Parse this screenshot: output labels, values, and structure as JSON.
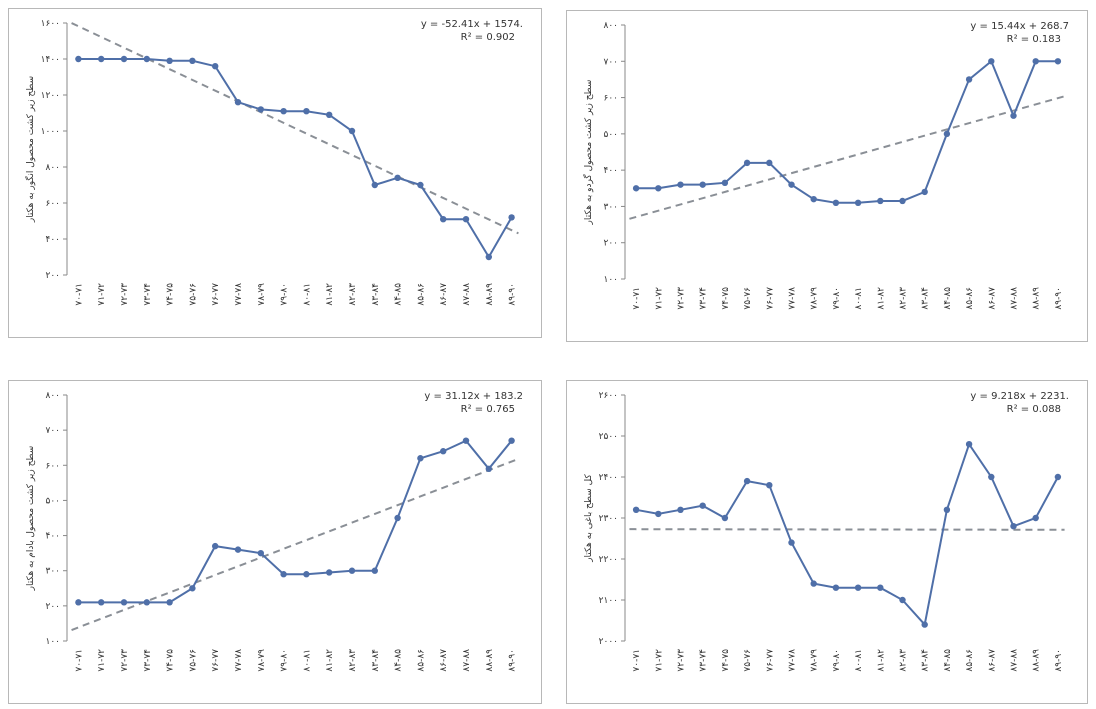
{
  "chart_data": [
    {
      "type": "line",
      "ylabel": "سطح زیر کشت محصول انگور به هکتار",
      "equation": "y = -52.41x + 1574.",
      "r2": "R² = 0.902",
      "categories": [
        "۷۰-۷۱",
        "۷۱-۷۲",
        "۷۲-۷۳",
        "۷۳-۷۴",
        "۷۴-۷۵",
        "۷۵-۷۶",
        "۷۶-۷۷",
        "۷۷-۷۸",
        "۷۸-۷۹",
        "۷۹-۸۰",
        "۸۰-۸۱",
        "۸۱-۸۲",
        "۸۲-۸۳",
        "۸۳-۸۴",
        "۸۴-۸۵",
        "۸۵-۸۶",
        "۸۶-۸۷",
        "۸۷-۸۸",
        "۸۸-۸۹",
        "۸۹-۹۰"
      ],
      "values": [
        1400,
        1400,
        1400,
        1400,
        1390,
        1390,
        1360,
        1160,
        1120,
        1110,
        1110,
        1090,
        1000,
        700,
        740,
        700,
        510,
        510,
        300,
        520
      ],
      "color": "#4f6fa8",
      "trend_color": "#8a8f96",
      "ylim": [
        200,
        1600
      ],
      "yticks": [
        {
          "value": 200,
          "label": "۲۰۰"
        },
        {
          "value": 400,
          "label": "۴۰۰"
        },
        {
          "value": 600,
          "label": "۶۰۰"
        },
        {
          "value": 800,
          "label": "۸۰۰"
        },
        {
          "value": 1000,
          "label": "۱۰۰۰"
        },
        {
          "value": 1200,
          "label": "۱۲۰۰"
        },
        {
          "value": 1400,
          "label": "۱۴۰۰"
        },
        {
          "value": 1600,
          "label": "۱۶۰۰"
        }
      ]
    },
    {
      "type": "line",
      "ylabel": "سطح زیر کشت محصول گردو به هکتار",
      "equation": "y = 15.44x + 268.7",
      "r2": "R² = 0.183",
      "categories": [
        "۷۰-۷۱",
        "۷۱-۷۲",
        "۷۲-۷۳",
        "۷۳-۷۴",
        "۷۴-۷۵",
        "۷۵-۷۶",
        "۷۶-۷۷",
        "۷۷-۷۸",
        "۷۸-۷۹",
        "۷۹-۸۰",
        "۸۰-۸۱",
        "۸۱-۸۲",
        "۸۲-۸۳",
        "۸۳-۸۴",
        "۸۴-۸۵",
        "۸۵-۸۶",
        "۸۶-۸۷",
        "۸۷-۸۸",
        "۸۸-۸۹",
        "۸۹-۹۰"
      ],
      "values": [
        350,
        350,
        360,
        360,
        365,
        420,
        420,
        360,
        320,
        310,
        310,
        315,
        315,
        340,
        500,
        650,
        700,
        550,
        700,
        700
      ],
      "color": "#4f6fa8",
      "trend_color": "#8a8f96",
      "ylim": [
        100,
        800
      ],
      "yticks": [
        {
          "value": 100,
          "label": "۱۰۰"
        },
        {
          "value": 200,
          "label": "۲۰۰"
        },
        {
          "value": 300,
          "label": "۳۰۰"
        },
        {
          "value": 400,
          "label": "۴۰۰"
        },
        {
          "value": 500,
          "label": "۵۰۰"
        },
        {
          "value": 600,
          "label": "۶۰۰"
        },
        {
          "value": 700,
          "label": "۷۰۰"
        },
        {
          "value": 800,
          "label": "۸۰۰"
        }
      ]
    },
    {
      "type": "line",
      "ylabel": "سطح زیر کشت محصول بادام به هکتار",
      "equation": "y = 31.12x + 183.2",
      "r2": "R² = 0.765",
      "categories": [
        "۷۰-۷۱",
        "۷۱-۷۲",
        "۷۲-۷۳",
        "۷۳-۷۴",
        "۷۴-۷۵",
        "۷۵-۷۶",
        "۷۶-۷۷",
        "۷۷-۷۸",
        "۷۸-۷۹",
        "۷۹-۸۰",
        "۸۰-۸۱",
        "۸۱-۸۲",
        "۸۲-۸۳",
        "۸۳-۸۴",
        "۸۴-۸۵",
        "۸۵-۸۶",
        "۸۶-۸۷",
        "۸۷-۸۸",
        "۸۸-۸۹",
        "۸۹-۹۰"
      ],
      "values": [
        210,
        210,
        210,
        210,
        210,
        250,
        370,
        360,
        350,
        290,
        290,
        295,
        300,
        300,
        450,
        620,
        640,
        670,
        590,
        670
      ],
      "color": "#4f6fa8",
      "trend_color": "#8a8f96",
      "ylim": [
        100,
        800
      ],
      "yticks": [
        {
          "value": 100,
          "label": "۱۰۰"
        },
        {
          "value": 200,
          "label": "۲۰۰"
        },
        {
          "value": 300,
          "label": "۳۰۰"
        },
        {
          "value": 400,
          "label": "۴۰۰"
        },
        {
          "value": 500,
          "label": "۵۰۰"
        },
        {
          "value": 600,
          "label": "۶۰۰"
        },
        {
          "value": 700,
          "label": "۷۰۰"
        },
        {
          "value": 800,
          "label": "۸۰۰"
        }
      ]
    },
    {
      "type": "line",
      "ylabel": "کل سطح باغی به هکتار",
      "equation": "y = 9.218x + 2231.",
      "r2": "R² = 0.088",
      "categories": [
        "۷۰-۷۱",
        "۷۱-۷۲",
        "۷۲-۷۳",
        "۷۳-۷۴",
        "۷۴-۷۵",
        "۷۵-۷۶",
        "۷۶-۷۷",
        "۷۷-۷۸",
        "۷۸-۷۹",
        "۷۹-۸۰",
        "۸۰-۸۱",
        "۸۱-۸۲",
        "۸۲-۸۳",
        "۸۳-۸۴",
        "۸۴-۸۵",
        "۸۵-۸۶",
        "۸۶-۸۷",
        "۸۷-۸۸",
        "۸۸-۸۹",
        "۸۹-۹۰"
      ],
      "values": [
        2320,
        2310,
        2320,
        2330,
        2300,
        2390,
        2380,
        2240,
        2140,
        2130,
        2130,
        2130,
        2100,
        2040,
        2320,
        2480,
        2400,
        2280,
        2300,
        2400
      ],
      "color": "#4f6fa8",
      "trend_color": "#8a8f96",
      "ylim": [
        2000,
        2600
      ],
      "yticks": [
        {
          "value": 2000,
          "label": "۲۰۰۰"
        },
        {
          "value": 2100,
          "label": "۲۱۰۰"
        },
        {
          "value": 2200,
          "label": "۲۲۰۰"
        },
        {
          "value": 2300,
          "label": "۲۳۰۰"
        },
        {
          "value": 2400,
          "label": "۲۴۰۰"
        },
        {
          "value": 2500,
          "label": "۲۵۰۰"
        },
        {
          "value": 2600,
          "label": "۲۶۰۰"
        }
      ]
    }
  ]
}
